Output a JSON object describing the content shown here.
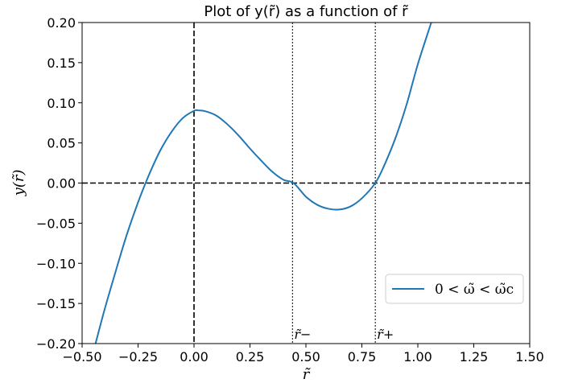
{
  "chart_data": {
    "type": "line",
    "title": "Plot of y(r̃) as a function of r̃",
    "xlabel": "r̃",
    "ylabel": "y(r̃)",
    "xlim": [
      -0.5,
      1.5
    ],
    "ylim": [
      -0.2,
      0.2
    ],
    "xticks": [
      -0.5,
      -0.25,
      0.0,
      0.25,
      0.5,
      0.75,
      1.0,
      1.25,
      1.5
    ],
    "xtick_labels": [
      "−0.50",
      "−0.25",
      "0.00",
      "0.25",
      "0.50",
      "0.75",
      "1.00",
      "1.25",
      "1.50"
    ],
    "yticks": [
      -0.2,
      -0.15,
      -0.1,
      -0.05,
      0.0,
      0.05,
      0.1,
      0.15,
      0.2
    ],
    "ytick_labels": [
      "−0.20",
      "−0.15",
      "−0.10",
      "−0.05",
      "0.00",
      "0.05",
      "0.10",
      "0.15",
      "0.20"
    ],
    "grid": false,
    "legend_position": "lower-right",
    "series": [
      {
        "name": "0 < ω̃ < ω̃c",
        "color": "#1f77b4",
        "x": [
          -0.44,
          -0.4,
          -0.35,
          -0.3,
          -0.25,
          -0.2,
          -0.15,
          -0.1,
          -0.05,
          0.0,
          0.02,
          0.05,
          0.1,
          0.15,
          0.2,
          0.25,
          0.3,
          0.35,
          0.4,
          0.445,
          0.5,
          0.55,
          0.6,
          0.65,
          0.7,
          0.75,
          0.81,
          0.85,
          0.9,
          0.95,
          1.0,
          1.06
        ],
        "y": [
          -0.2,
          -0.158,
          -0.11,
          -0.064,
          -0.024,
          0.011,
          0.041,
          0.064,
          0.081,
          0.09,
          0.0905,
          0.0895,
          0.084,
          0.073,
          0.059,
          0.043,
          0.028,
          0.014,
          0.004,
          0.0,
          -0.017,
          -0.027,
          -0.032,
          -0.033,
          -0.029,
          -0.019,
          0.0,
          0.022,
          0.056,
          0.098,
          0.148,
          0.2
        ]
      }
    ],
    "reference_lines": [
      {
        "orientation": "horizontal",
        "value": 0.0,
        "style": "dashed",
        "color": "#000000"
      },
      {
        "orientation": "vertical",
        "value": 0.0,
        "style": "dashed",
        "color": "#000000"
      },
      {
        "orientation": "vertical",
        "value": 0.44,
        "style": "dotted",
        "color": "#000000",
        "label": "r̃−"
      },
      {
        "orientation": "vertical",
        "value": 0.81,
        "style": "dotted",
        "color": "#000000",
        "label": "r̃+"
      }
    ]
  }
}
